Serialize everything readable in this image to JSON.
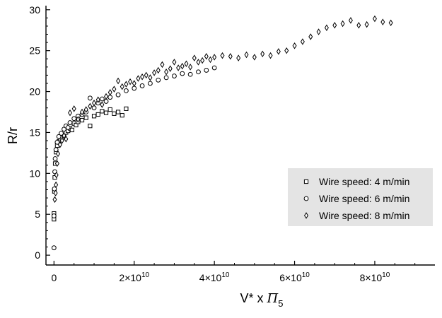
{
  "chart_data": {
    "type": "scatter",
    "xlabel": "V* x Π5",
    "ylabel": "R/r",
    "xlim": [
      -2000000000.0,
      95000000000.0
    ],
    "ylim": [
      -1.2,
      30.5
    ],
    "x_ticks": [
      {
        "value": 0,
        "base": "0",
        "exp": ""
      },
      {
        "value": 20000000000.0,
        "base": "2×10",
        "exp": "10"
      },
      {
        "value": 40000000000.0,
        "base": "4×10",
        "exp": "10"
      },
      {
        "value": 60000000000.0,
        "base": "6×10",
        "exp": "10"
      },
      {
        "value": 80000000000.0,
        "base": "8×10",
        "exp": "10"
      }
    ],
    "y_ticks": [
      0,
      5,
      10,
      15,
      20,
      25,
      30
    ],
    "grid": false,
    "legend": {
      "position": "right",
      "background": "#e4e4e4"
    },
    "series": [
      {
        "name": "Wire speed: 4 m/min",
        "marker": "square",
        "points": [
          [
            0.0,
            4.4
          ],
          [
            0.0,
            5.1
          ],
          [
            100000000.0,
            7.8
          ],
          [
            200000000.0,
            9.5
          ],
          [
            300000000.0,
            11.2
          ],
          [
            500000000.0,
            12.6
          ],
          [
            800000000.0,
            13.4
          ],
          [
            1200000000.0,
            13.9
          ],
          [
            1600000000.0,
            14.2
          ],
          [
            2000000000.0,
            14.4
          ],
          [
            2500000000.0,
            14.6
          ],
          [
            3000000000.0,
            15.0
          ],
          [
            3500000000.0,
            15.2
          ],
          [
            4000000000.0,
            15.5
          ],
          [
            4500000000.0,
            15.3
          ],
          [
            5000000000.0,
            16.1
          ],
          [
            5500000000.0,
            15.9
          ],
          [
            6000000000.0,
            16.3
          ],
          [
            7000000000.0,
            16.5
          ],
          [
            8000000000.0,
            16.8
          ],
          [
            9000000000.0,
            15.8
          ],
          [
            10000000000.0,
            17.0
          ],
          [
            11000000000.0,
            17.2
          ],
          [
            12000000000.0,
            17.6
          ],
          [
            13000000000.0,
            17.4
          ],
          [
            14000000000.0,
            17.8
          ],
          [
            15000000000.0,
            17.3
          ],
          [
            16000000000.0,
            17.5
          ],
          [
            17000000000.0,
            17.1
          ],
          [
            18000000000.0,
            17.9
          ]
        ]
      },
      {
        "name": "Wire speed: 6 m/min",
        "marker": "circle",
        "points": [
          [
            0.0,
            0.9
          ],
          [
            0.0,
            4.8
          ],
          [
            100000000.0,
            8.1
          ],
          [
            200000000.0,
            10.2
          ],
          [
            300000000.0,
            11.8
          ],
          [
            500000000.0,
            12.9
          ],
          [
            800000000.0,
            13.8
          ],
          [
            1200000000.0,
            14.5
          ],
          [
            1800000000.0,
            14.9
          ],
          [
            2500000000.0,
            15.4
          ],
          [
            3000000000.0,
            15.8
          ],
          [
            3500000000.0,
            15.6
          ],
          [
            4000000000.0,
            16.2
          ],
          [
            5000000000.0,
            16.7
          ],
          [
            6000000000.0,
            17.0
          ],
          [
            7000000000.0,
            17.2
          ],
          [
            8000000000.0,
            17.5
          ],
          [
            9000000000.0,
            19.2
          ],
          [
            10000000000.0,
            18.0
          ],
          [
            11000000000.0,
            18.6
          ],
          [
            12000000000.0,
            19.1
          ],
          [
            13000000000.0,
            18.8
          ],
          [
            14000000000.0,
            19.3
          ],
          [
            16000000000.0,
            19.6
          ],
          [
            18000000000.0,
            20.1
          ],
          [
            20000000000.0,
            20.4
          ],
          [
            22000000000.0,
            20.7
          ],
          [
            24000000000.0,
            21.0
          ],
          [
            26000000000.0,
            21.4
          ],
          [
            28000000000.0,
            21.7
          ],
          [
            30000000000.0,
            21.9
          ],
          [
            32000000000.0,
            22.2
          ],
          [
            34000000000.0,
            22.1
          ],
          [
            36000000000.0,
            22.4
          ],
          [
            38000000000.0,
            22.6
          ],
          [
            40000000000.0,
            22.9
          ]
        ]
      },
      {
        "name": "Wire speed: 8 m/min",
        "marker": "diamond",
        "points": [
          [
            200000000.0,
            6.8
          ],
          [
            400000000.0,
            7.6
          ],
          [
            500000000.0,
            8.6
          ],
          [
            600000000.0,
            9.8
          ],
          [
            800000000.0,
            11.2
          ],
          [
            1000000000.0,
            12.4
          ],
          [
            1500000000.0,
            13.5
          ],
          [
            2000000000.0,
            14.0
          ],
          [
            2500000000.0,
            14.6
          ],
          [
            3000000000.0,
            14.2
          ],
          [
            4000000000.0,
            17.4
          ],
          [
            5000000000.0,
            17.9
          ],
          [
            6000000000.0,
            16.6
          ],
          [
            7000000000.0,
            17.5
          ],
          [
            8000000000.0,
            17.8
          ],
          [
            9000000000.0,
            18.2
          ],
          [
            10000000000.0,
            18.6
          ],
          [
            11000000000.0,
            19.0
          ],
          [
            12000000000.0,
            18.4
          ],
          [
            13000000000.0,
            19.4
          ],
          [
            14000000000.0,
            19.9
          ],
          [
            15000000000.0,
            20.3
          ],
          [
            16000000000.0,
            21.3
          ],
          [
            17000000000.0,
            20.6
          ],
          [
            18000000000.0,
            20.9
          ],
          [
            19000000000.0,
            21.2
          ],
          [
            20000000000.0,
            21.0
          ],
          [
            21000000000.0,
            21.6
          ],
          [
            22000000000.0,
            21.8
          ],
          [
            23000000000.0,
            22.0
          ],
          [
            24000000000.0,
            21.7
          ],
          [
            25000000000.0,
            22.3
          ],
          [
            26000000000.0,
            22.6
          ],
          [
            27000000000.0,
            23.3
          ],
          [
            28000000000.0,
            22.4
          ],
          [
            29000000000.0,
            22.8
          ],
          [
            30000000000.0,
            23.6
          ],
          [
            31000000000.0,
            22.9
          ],
          [
            32000000000.0,
            23.1
          ],
          [
            33000000000.0,
            23.4
          ],
          [
            34000000000.0,
            23.0
          ],
          [
            35000000000.0,
            24.1
          ],
          [
            36000000000.0,
            23.6
          ],
          [
            37000000000.0,
            23.8
          ],
          [
            38000000000.0,
            24.3
          ],
          [
            39000000000.0,
            23.9
          ],
          [
            40000000000.0,
            24.2
          ],
          [
            42000000000.0,
            24.4
          ],
          [
            44000000000.0,
            24.3
          ],
          [
            46000000000.0,
            24.1
          ],
          [
            48000000000.0,
            24.5
          ],
          [
            50000000000.0,
            24.2
          ],
          [
            52000000000.0,
            24.6
          ],
          [
            54000000000.0,
            24.4
          ],
          [
            56000000000.0,
            24.9
          ],
          [
            58000000000.0,
            25.0
          ],
          [
            60000000000.0,
            25.6
          ],
          [
            62000000000.0,
            26.1
          ],
          [
            64000000000.0,
            26.7
          ],
          [
            66000000000.0,
            27.3
          ],
          [
            68000000000.0,
            27.8
          ],
          [
            70000000000.0,
            28.1
          ],
          [
            72000000000.0,
            28.3
          ],
          [
            74000000000.0,
            28.7
          ],
          [
            76000000000.0,
            28.1
          ],
          [
            78000000000.0,
            28.2
          ],
          [
            80000000000.0,
            28.9
          ],
          [
            82000000000.0,
            28.5
          ],
          [
            84000000000.0,
            28.4
          ]
        ]
      }
    ]
  }
}
